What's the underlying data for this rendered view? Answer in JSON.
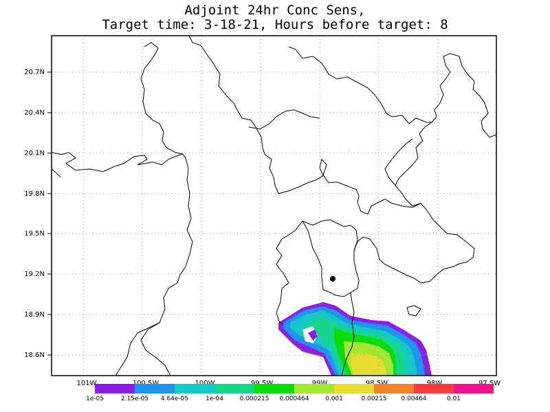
{
  "title": {
    "line1": "Adjoint 24hr Conc Sens,",
    "line2": "Target time: 3-18-21, Hours before target: 8"
  },
  "axes": {
    "y_ticks": [
      "20.7N",
      "20.4N",
      "20.1N",
      "19.8N",
      "19.5N",
      "19.2N",
      "18.9N",
      "18.6N"
    ],
    "x_ticks": [
      "101W",
      "100.5W",
      "100W",
      "99.5W",
      "99W",
      "98.5W",
      "98W",
      "97.5W"
    ]
  },
  "colorbar": {
    "colors": [
      "#8c1ee6",
      "#1e96f0",
      "#14c8c8",
      "#14d78c",
      "#0adc0a",
      "#a0e632",
      "#e6dc32",
      "#f0822d",
      "#fa3c3c",
      "#f0148c"
    ],
    "labels": [
      "1e-05",
      "2.15e-05",
      "4.64e-05",
      "1e-04",
      "0.000215",
      "0.000464",
      "0.001",
      "0.00215",
      "0.00464",
      "0.01"
    ]
  },
  "plume_colors": {
    "level1": "#8c1ee6",
    "level2": "#1e96f0",
    "level3": "#14c8c8",
    "level4": "#14d78c",
    "level5": "#0adc0a",
    "level6": "#a0e632",
    "level7": "#e6dc32"
  },
  "target_marker": "black-dot"
}
